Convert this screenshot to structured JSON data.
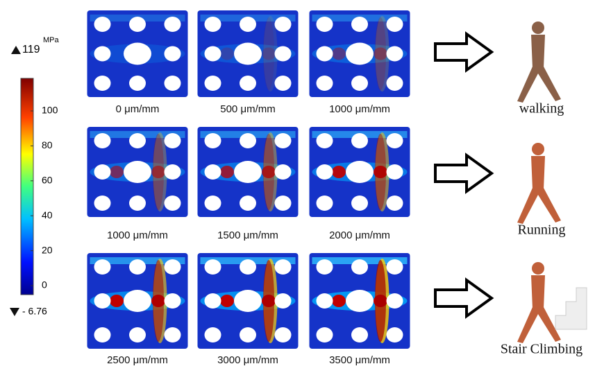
{
  "colorbar": {
    "unit": "MPa",
    "max": "119",
    "min": "- 6.76",
    "ticks": [
      "100",
      "80",
      "60",
      "40",
      "20",
      "0"
    ]
  },
  "rows": [
    {
      "panels": [
        {
          "label": "0 μm/mm"
        },
        {
          "label": "500 μm/mm"
        },
        {
          "label": "1000 μm/mm"
        }
      ],
      "activity": "walking"
    },
    {
      "panels": [
        {
          "label": "1000 μm/mm"
        },
        {
          "label": "1500 μm/mm"
        },
        {
          "label": "2000 μm/mm"
        }
      ],
      "activity": "Running"
    },
    {
      "panels": [
        {
          "label": "2500 μm/mm"
        },
        {
          "label": "3000 μm/mm"
        },
        {
          "label": "3500 μm/mm"
        }
      ],
      "activity": "Stair Climbing"
    }
  ]
}
